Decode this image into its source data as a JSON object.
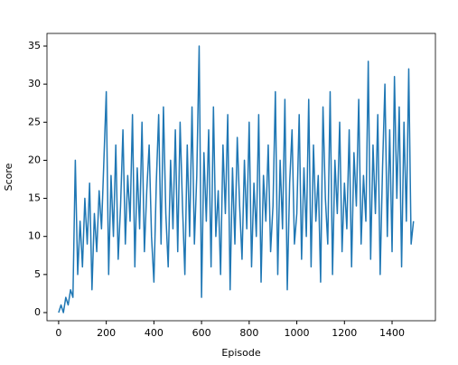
{
  "chart_data": {
    "type": "line",
    "xlabel": "Episode",
    "ylabel": "Score",
    "x": [
      0,
      10,
      20,
      30,
      40,
      50,
      60,
      70,
      80,
      90,
      100,
      110,
      120,
      130,
      140,
      150,
      160,
      170,
      180,
      190,
      200,
      210,
      220,
      230,
      240,
      250,
      260,
      270,
      280,
      290,
      300,
      310,
      320,
      330,
      340,
      350,
      360,
      370,
      380,
      390,
      400,
      410,
      420,
      430,
      440,
      450,
      460,
      470,
      480,
      490,
      500,
      510,
      520,
      530,
      540,
      550,
      560,
      570,
      580,
      590,
      600,
      610,
      620,
      630,
      640,
      650,
      660,
      670,
      680,
      690,
      700,
      710,
      720,
      730,
      740,
      750,
      760,
      770,
      780,
      790,
      800,
      810,
      820,
      830,
      840,
      850,
      860,
      870,
      880,
      890,
      900,
      910,
      920,
      930,
      940,
      950,
      960,
      970,
      980,
      990,
      1000,
      1010,
      1020,
      1030,
      1040,
      1050,
      1060,
      1070,
      1080,
      1090,
      1100,
      1110,
      1120,
      1130,
      1140,
      1150,
      1160,
      1170,
      1180,
      1190,
      1200,
      1210,
      1220,
      1230,
      1240,
      1250,
      1260,
      1270,
      1280,
      1290,
      1300,
      1310,
      1320,
      1330,
      1340,
      1350,
      1360,
      1370,
      1380,
      1390,
      1400,
      1410,
      1420,
      1430,
      1440,
      1450,
      1460,
      1470,
      1480,
      1490
    ],
    "series": [
      {
        "color": "#1f77b4",
        "values": [
          0,
          1,
          0,
          2,
          1,
          3,
          2,
          20,
          5,
          12,
          6,
          15,
          9,
          17,
          3,
          13,
          8,
          16,
          11,
          20,
          29,
          5,
          18,
          10,
          22,
          7,
          14,
          24,
          9,
          18,
          12,
          26,
          6,
          19,
          11,
          25,
          8,
          16,
          22,
          10,
          4,
          17,
          26,
          9,
          27,
          13,
          6,
          20,
          11,
          24,
          8,
          25,
          14,
          5,
          22,
          10,
          27,
          9,
          18,
          35,
          2,
          21,
          12,
          24,
          6,
          27,
          10,
          16,
          5,
          22,
          13,
          26,
          3,
          19,
          9,
          23,
          14,
          7,
          20,
          11,
          25,
          6,
          17,
          10,
          26,
          4,
          18,
          12,
          22,
          8,
          14,
          29,
          5,
          20,
          11,
          28,
          3,
          17,
          24,
          9,
          13,
          26,
          7,
          19,
          10,
          28,
          6,
          22,
          12,
          18,
          4,
          27,
          15,
          9,
          29,
          5,
          20,
          13,
          25,
          8,
          17,
          11,
          24,
          6,
          21,
          14,
          28,
          9,
          18,
          12,
          33,
          7,
          22,
          13,
          26,
          5,
          19,
          30,
          10,
          24,
          8,
          31,
          15,
          27,
          6,
          25,
          12,
          32,
          9,
          12
        ]
      }
    ],
    "xlim": [
      -49,
      1582
    ],
    "ylim": [
      -1.07,
      36.66
    ],
    "xticks": [
      0,
      200,
      400,
      600,
      800,
      1000,
      1200,
      1400
    ],
    "yticks": [
      0,
      5,
      10,
      15,
      20,
      25,
      30,
      35
    ]
  }
}
